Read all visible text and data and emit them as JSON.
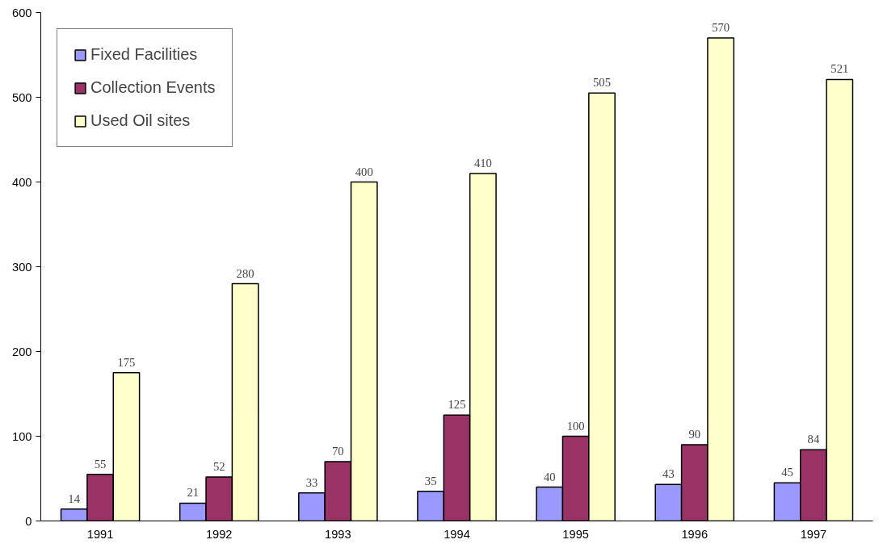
{
  "chart_data": {
    "type": "bar",
    "categories": [
      "1991",
      "1992",
      "1993",
      "1994",
      "1995",
      "1996",
      "1997"
    ],
    "series": [
      {
        "name": "Fixed Facilities",
        "color": "#9999ff",
        "values": [
          14,
          21,
          33,
          35,
          40,
          43,
          45
        ]
      },
      {
        "name": "Collection Events",
        "color": "#993366",
        "values": [
          55,
          52,
          70,
          125,
          100,
          90,
          84
        ]
      },
      {
        "name": "Used Oil sites",
        "color": "#ffffcc",
        "values": [
          175,
          280,
          400,
          410,
          505,
          570,
          521
        ]
      }
    ],
    "ylim": [
      0,
      600
    ],
    "yticks": [
      0,
      100,
      200,
      300,
      400,
      500,
      600
    ],
    "grid": false,
    "legend": "top left",
    "data_labels": true
  }
}
